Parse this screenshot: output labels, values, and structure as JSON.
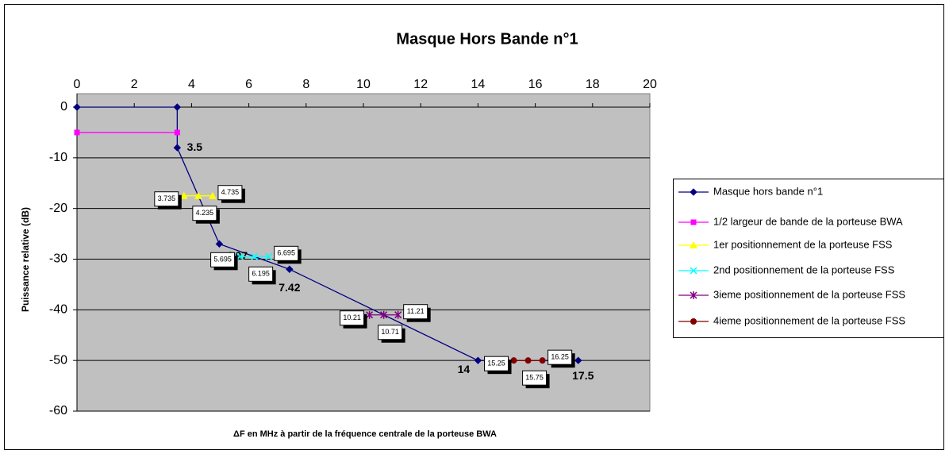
{
  "chart_data": {
    "type": "line",
    "title": "Masque Hors Bande n°1",
    "ylabel": "Puissance relative (dB)",
    "xlabel": "ΔF en MHz à partir de la fréquence centrale de la porteuse BWA",
    "xlim": [
      0,
      20
    ],
    "xticks": [
      0,
      2,
      4,
      6,
      8,
      10,
      12,
      14,
      16,
      18,
      20
    ],
    "ylim": [
      -60,
      0
    ],
    "yticks": [
      0,
      -10,
      -20,
      -30,
      -40,
      -50,
      -60
    ],
    "grid": true,
    "legend": "right",
    "series": [
      {
        "name": "Masque hors bande n°1",
        "color": "#000080",
        "marker": "diamond",
        "labels": "plain",
        "x": [
          0,
          3.5,
          3.5,
          4.97,
          7.42,
          14,
          17.5
        ],
        "values": [
          0,
          0,
          -8,
          -27,
          -32,
          -50,
          -50
        ]
      },
      {
        "name": "1/2 largeur de bande de la porteuse BWA",
        "color": "#ff00ff",
        "marker": "square",
        "x": [
          0,
          3.5
        ],
        "values": [
          -5,
          -5
        ]
      },
      {
        "name": "1er positionnement de la porteuse FSS",
        "color": "#ffff00",
        "marker": "triangle",
        "labels": "box",
        "x": [
          3.735,
          4.235,
          4.735
        ],
        "values": [
          -17.5,
          -17.5,
          -17.5
        ]
      },
      {
        "name": "2nd positionnement de la porteuse FSS",
        "color": "#00ffff",
        "marker": "cross",
        "labels": "box",
        "x": [
          5.695,
          6.195,
          6.695
        ],
        "values": [
          -29.5,
          -29.5,
          -29.5
        ]
      },
      {
        "name": "3ieme positionnement de la porteuse FSS",
        "color": "#800080",
        "marker": "star",
        "labels": "box",
        "x": [
          10.21,
          10.71,
          11.21
        ],
        "values": [
          -41,
          -41,
          -41
        ]
      },
      {
        "name": "4ieme positionnement de la porteuse FSS",
        "color": "#800000",
        "marker": "circle",
        "labels": "box",
        "x": [
          15.25,
          15.75,
          16.25
        ],
        "values": [
          -50,
          -50,
          -50
        ]
      }
    ]
  }
}
